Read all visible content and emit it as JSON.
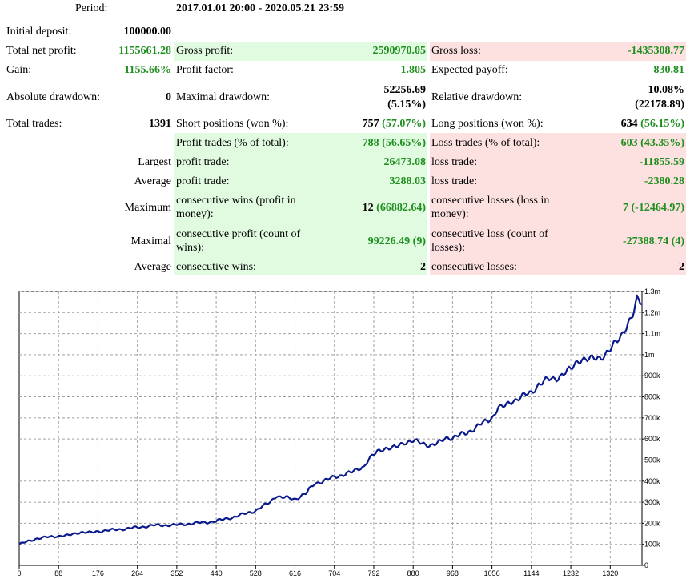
{
  "header": {
    "period_label": "Period:",
    "period_value": "2017.01.01 20:00 - 2020.05.21 23:59"
  },
  "stats": {
    "initial_deposit_label": "Initial deposit:",
    "initial_deposit_value": "100000.00",
    "total_net_profit_label": "Total net profit:",
    "total_net_profit_value": "1155661.28",
    "gross_profit_label": "Gross profit:",
    "gross_profit_value": "2590970.05",
    "gross_loss_label": "Gross loss:",
    "gross_loss_value": "-1435308.77",
    "gain_label": "Gain:",
    "gain_value": "1155.66%",
    "profit_factor_label": "Profit factor:",
    "profit_factor_value": "1.805",
    "expected_payoff_label": "Expected payoff:",
    "expected_payoff_value": "830.81",
    "absolute_drawdown_label": "Absolute drawdown:",
    "absolute_drawdown_value": "0",
    "maximal_drawdown_label": "Maximal drawdown:",
    "maximal_drawdown_value": "52256.69",
    "maximal_drawdown_pct": "(5.15%)",
    "relative_drawdown_label": "Relative drawdown:",
    "relative_drawdown_value": "10.08%",
    "relative_drawdown_amount": "(22178.89)",
    "total_trades_label": "Total trades:",
    "total_trades_value": "1391",
    "short_positions_label": "Short positions (won %):",
    "short_positions_count": "757",
    "short_positions_pct": "(57.07%)",
    "long_positions_label": "Long positions (won %):",
    "long_positions_count": "634",
    "long_positions_pct": "(56.15%)",
    "profit_trades_label": "Profit trades (% of total):",
    "profit_trades_count": "788",
    "profit_trades_pct": "(56.65%)",
    "loss_trades_label": "Loss trades (% of total):",
    "loss_trades_value": "603 (43.35%)",
    "largest_label": "Largest",
    "largest_profit_label": "profit trade:",
    "largest_profit_value": "26473.08",
    "largest_loss_label": "loss trade:",
    "largest_loss_value": "-11855.59",
    "average_label": "Average",
    "average_profit_label": "profit trade:",
    "average_profit_value": "3288.03",
    "average_loss_label": "loss trade:",
    "average_loss_value": "-2380.28",
    "maximum_label": "Maximum",
    "max_consec_wins_label": "consecutive wins (profit in money):",
    "max_consec_wins_count": "12",
    "max_consec_wins_money": "(66882.64)",
    "max_consec_losses_label": "consecutive losses (loss in money):",
    "max_consec_losses_value": "7 (-12464.97)",
    "maximal_label": "Maximal",
    "maximal_consec_profit_label": "consecutive profit (count of wins):",
    "maximal_consec_profit_value": "99226.49 (9)",
    "maximal_consec_loss_label": "consecutive loss (count of losses):",
    "maximal_consec_loss_value": "-27388.74 (4)",
    "average2_label": "Average",
    "avg_consec_wins_label": "consecutive wins:",
    "avg_consec_wins_value": "2",
    "avg_consec_losses_label": "consecutive losses:",
    "avg_consec_losses_value": "2"
  },
  "colors": {
    "green_text": "#1f8f1f",
    "green_bg": "#e1fbe1",
    "pink_bg": "#fde1e1",
    "line": "#0a1a8c",
    "grid": "#a0a0a0"
  },
  "chart_data": {
    "type": "line",
    "title": "",
    "xlabel": "",
    "ylabel": "",
    "x_ticks": [
      "0",
      "88",
      "176",
      "264",
      "352",
      "440",
      "528",
      "616",
      "704",
      "792",
      "880",
      "968",
      "1056",
      "1144",
      "1232",
      "1320"
    ],
    "y_ticks": [
      "0",
      "100k",
      "200k",
      "300k",
      "400k",
      "500k",
      "600k",
      "700k",
      "800k",
      "900k",
      "1m",
      "1.1m",
      "1.2m",
      "1.3m"
    ],
    "xlim": [
      0,
      1391
    ],
    "ylim": [
      0,
      1300000
    ],
    "grid": true,
    "series": [
      {
        "x": [
          0,
          40,
          88,
          130,
          176,
          220,
          264,
          300,
          352,
          380,
          420,
          440,
          480,
          528,
          560,
          575,
          600,
          616,
          640,
          660,
          680,
          704,
          740,
          770,
          780,
          800,
          830,
          860,
          880,
          900,
          920,
          950,
          968,
          1000,
          1056,
          1070,
          1100,
          1144,
          1160,
          1180,
          1200,
          1232,
          1250,
          1280,
          1300,
          1320,
          1340,
          1360,
          1370,
          1380,
          1391
        ],
        "y": [
          100000,
          128000,
          140000,
          150000,
          162000,
          170000,
          180000,
          190000,
          192000,
          198000,
          205000,
          210000,
          230000,
          260000,
          300000,
          330000,
          320000,
          315000,
          340000,
          390000,
          400000,
          420000,
          440000,
          460000,
          500000,
          540000,
          560000,
          585000,
          590000,
          580000,
          570000,
          600000,
          605000,
          630000,
          700000,
          750000,
          780000,
          820000,
          860000,
          880000,
          890000,
          930000,
          960000,
          980000,
          990000,
          1020000,
          1080000,
          1150000,
          1200000,
          1260000,
          1240000
        ]
      }
    ]
  }
}
